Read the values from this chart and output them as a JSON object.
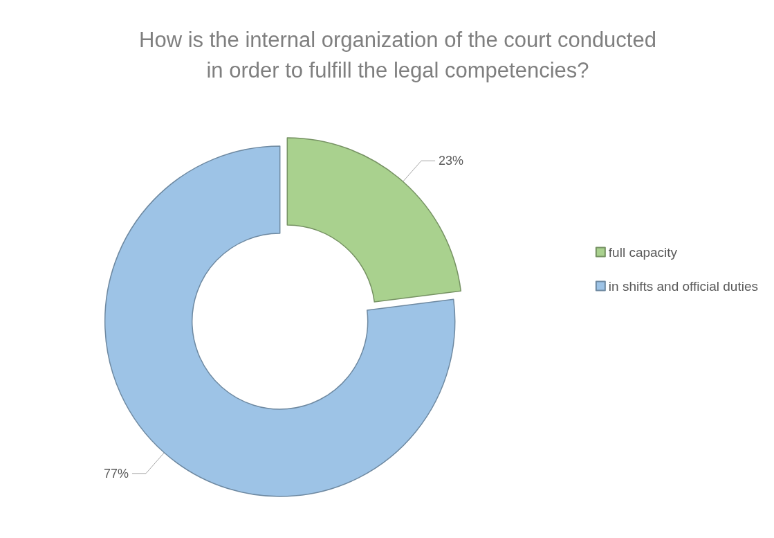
{
  "chart_data": {
    "type": "donut",
    "title": "How is the internal organization of the court conducted\nin order to fulfill the legal competencies?",
    "categories": [
      "full capacity",
      "in shifts and official duties"
    ],
    "values": [
      23,
      77
    ],
    "colors": [
      "#a9d18e",
      "#9dc3e6"
    ],
    "value_labels": [
      "23%",
      "77%"
    ],
    "legend": "right"
  }
}
